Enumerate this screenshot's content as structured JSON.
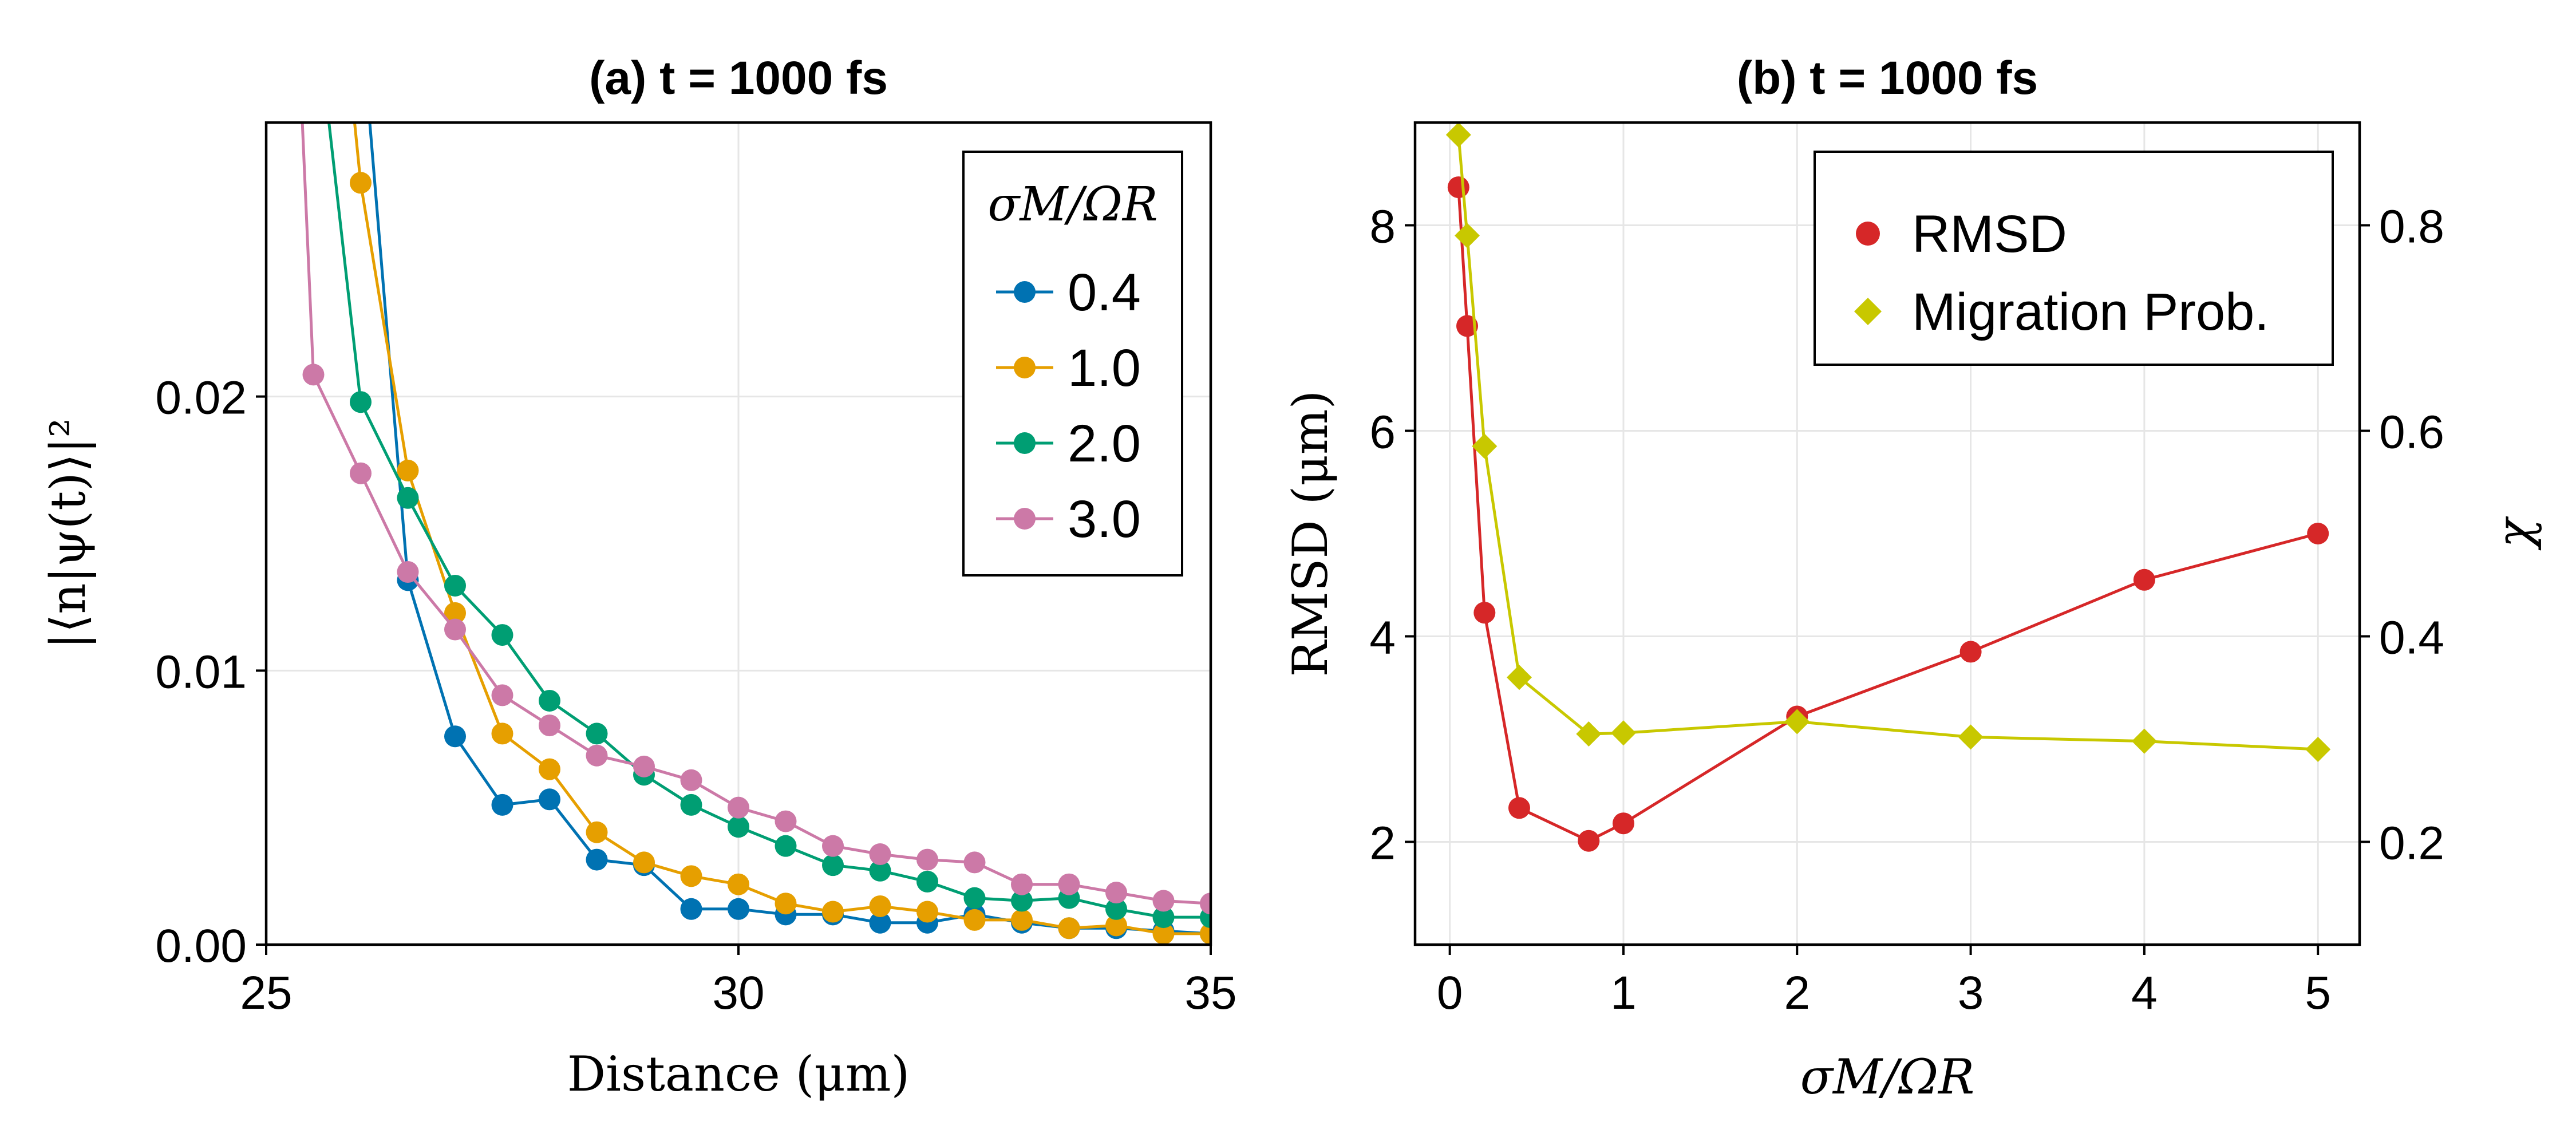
{
  "chart_data": [
    {
      "type": "line",
      "title": "(a) t = 1000 fs",
      "xlabel": "Distance (μm)",
      "ylabel": "|⟨n|ψ(t)⟩|²",
      "xlim": [
        25,
        35
      ],
      "ylim": [
        0,
        0.03
      ],
      "xticks": [
        25,
        30,
        35
      ],
      "xtick_labels": [
        "25",
        "30",
        "35"
      ],
      "yticks": [
        0,
        0.01,
        0.02
      ],
      "ytick_labels": [
        "0.00",
        "0.01",
        "0.02"
      ],
      "grid": true,
      "legend": {
        "title": "σM/ΩR",
        "placement": "top-right"
      },
      "series": [
        {
          "name": "0.4",
          "color": "#0072b2",
          "x": [
            26.0,
            26.5,
            27.0,
            27.5,
            28.0,
            28.5,
            29.0,
            29.5,
            30.0,
            30.5,
            31.0,
            31.5,
            32.0,
            32.5,
            33.0,
            33.5,
            34.0,
            34.5,
            35.0
          ],
          "y": [
            0.034,
            0.0133,
            0.0076,
            0.0051,
            0.0053,
            0.0031,
            0.0029,
            0.0013,
            0.0013,
            0.0011,
            0.0011,
            0.0008,
            0.0008,
            0.0011,
            0.0008,
            0.0006,
            0.0006,
            0.0005,
            0.0004
          ]
        },
        {
          "name": "1.0",
          "color": "#e69f00",
          "x": [
            25.5,
            26.0,
            26.5,
            27.0,
            27.5,
            28.0,
            28.5,
            29.0,
            29.5,
            30.0,
            30.5,
            31.0,
            31.5,
            32.0,
            32.5,
            33.0,
            33.5,
            34.0,
            34.5,
            35.0
          ],
          "y": [
            0.045,
            0.0278,
            0.0173,
            0.0121,
            0.0077,
            0.0064,
            0.0041,
            0.003,
            0.0025,
            0.0022,
            0.0015,
            0.0012,
            0.0014,
            0.0012,
            0.0009,
            0.0009,
            0.0006,
            0.0007,
            0.0004,
            0.0004
          ]
        },
        {
          "name": "2.0",
          "color": "#009e73",
          "x": [
            25.5,
            26.0,
            26.5,
            27.0,
            27.5,
            28.0,
            28.5,
            29.0,
            29.5,
            30.0,
            30.5,
            31.0,
            31.5,
            32.0,
            32.5,
            33.0,
            33.5,
            34.0,
            34.5,
            35.0
          ],
          "y": [
            0.035,
            0.0198,
            0.0163,
            0.0131,
            0.0113,
            0.0089,
            0.0077,
            0.0062,
            0.0051,
            0.0043,
            0.0036,
            0.0029,
            0.0027,
            0.0023,
            0.0017,
            0.0016,
            0.0017,
            0.0013,
            0.001,
            0.001
          ]
        },
        {
          "name": "3.0",
          "color": "#cc79a7",
          "x": [
            25.0,
            25.5,
            26.0,
            26.5,
            27.0,
            27.5,
            28.0,
            28.5,
            29.0,
            29.5,
            30.0,
            30.5,
            31.0,
            31.5,
            32.0,
            32.5,
            33.0,
            33.5,
            34.0,
            34.5,
            35.0
          ],
          "y": [
            0.06,
            0.0208,
            0.0172,
            0.0136,
            0.0115,
            0.0091,
            0.008,
            0.0069,
            0.0065,
            0.006,
            0.005,
            0.0045,
            0.0036,
            0.0033,
            0.0031,
            0.003,
            0.0022,
            0.0022,
            0.0019,
            0.0016,
            0.0015
          ]
        }
      ]
    },
    {
      "type": "line",
      "title": "(b) t = 1000 fs",
      "xlabel": "σM/ΩR",
      "ylabel": "RMSD (μm)",
      "y2label": "χ",
      "xlim": [
        -0.2,
        5.24
      ],
      "ylim": [
        1.0,
        9.0
      ],
      "y2lim": [
        0.1,
        0.9
      ],
      "xticks": [
        0,
        1,
        2,
        3,
        4,
        5
      ],
      "xtick_labels": [
        "0",
        "1",
        "2",
        "3",
        "4",
        "5"
      ],
      "yticks": [
        2,
        4,
        6,
        8
      ],
      "ytick_labels": [
        "2",
        "4",
        "6",
        "8"
      ],
      "y2ticks": [
        0.2,
        0.4,
        0.6,
        0.8
      ],
      "y2tick_labels": [
        "0.2",
        "0.4",
        "0.6",
        "0.8"
      ],
      "grid": true,
      "legend": {
        "placement": "top-right"
      },
      "series": [
        {
          "name": "RMSD",
          "axis": "left",
          "marker": "circle",
          "color": "#d62728",
          "x": [
            0.05,
            0.1,
            0.2,
            0.4,
            0.8,
            1.0,
            2.0,
            3.0,
            4.0,
            5.0
          ],
          "y": [
            8.37,
            7.02,
            4.23,
            2.33,
            2.01,
            2.18,
            3.22,
            3.85,
            4.55,
            5.0
          ]
        },
        {
          "name": "Migration Prob.",
          "axis": "right",
          "marker": "diamond",
          "color": "#c8c800",
          "x": [
            0.05,
            0.1,
            0.2,
            0.4,
            0.8,
            1.0,
            2.0,
            3.0,
            4.0,
            5.0
          ],
          "y": [
            0.888,
            0.79,
            0.585,
            0.36,
            0.305,
            0.306,
            0.317,
            0.302,
            0.298,
            0.29
          ]
        }
      ]
    }
  ]
}
